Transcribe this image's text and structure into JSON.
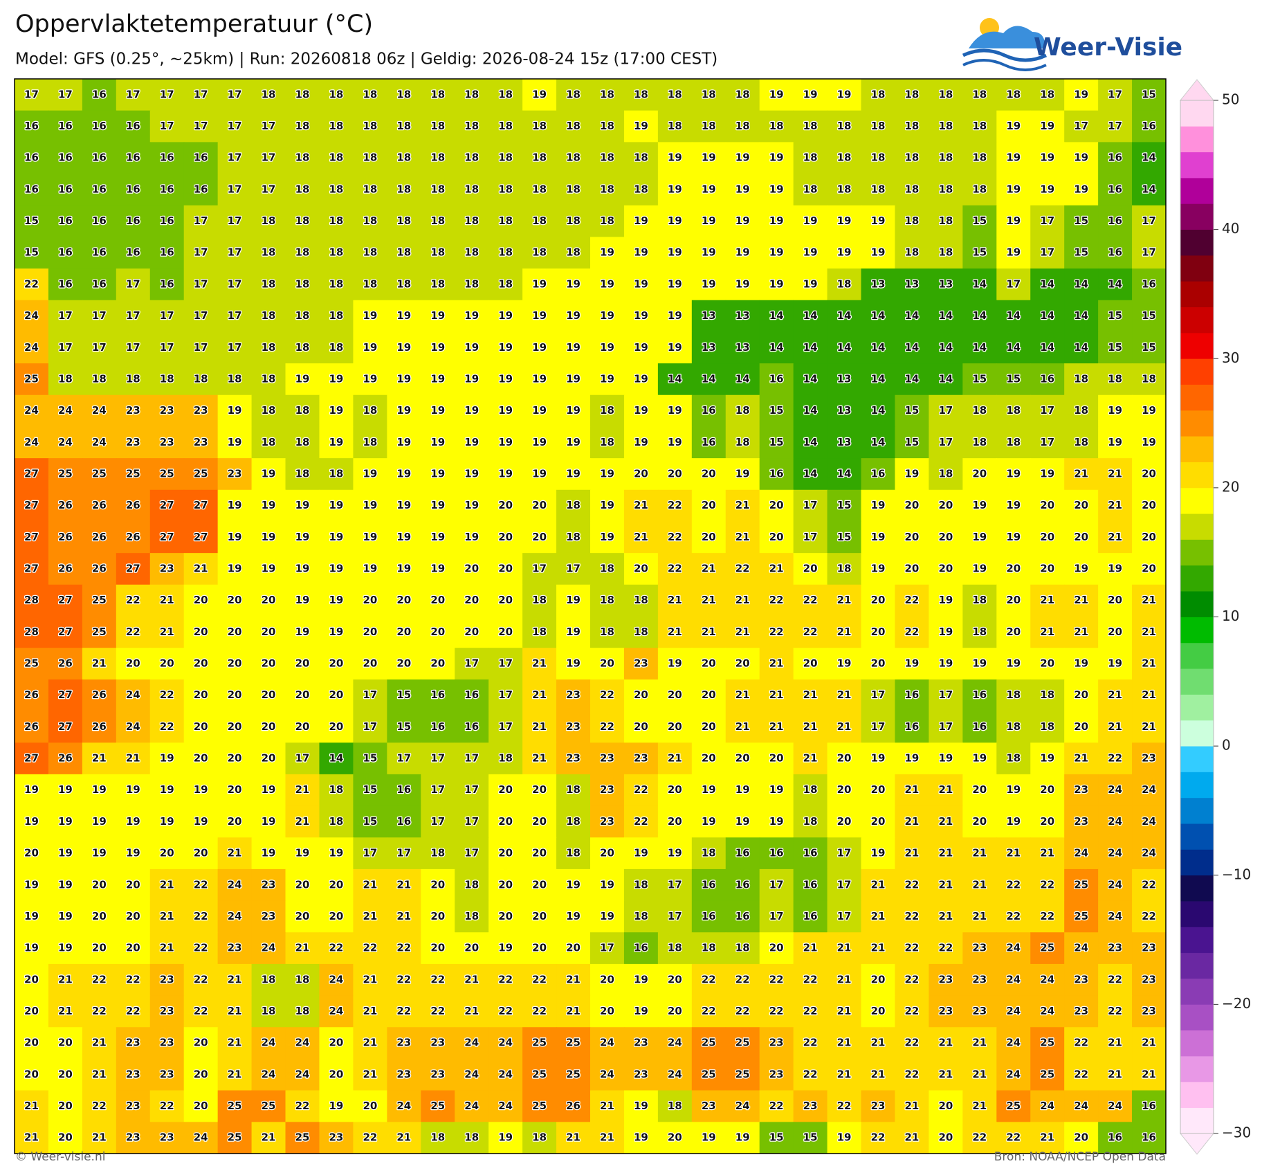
{
  "header": {
    "title": "Oppervlaktetemperatuur (°C)",
    "subtitle": "Model: GFS (0.25°, ~25km)  |  Run: 20260818 06z  |  Geldig: 2026-08-24 15z (17:00 CEST)",
    "logo": "Weer-Visie"
  },
  "map": {
    "grid": [
      [
        17,
        17,
        16,
        17,
        17,
        17,
        17,
        18,
        18,
        18,
        18,
        18,
        18,
        18,
        18,
        19,
        18,
        18,
        18,
        18,
        18,
        18,
        19,
        19,
        19,
        18,
        18,
        18,
        18,
        18,
        18,
        19,
        17,
        15
      ],
      [
        16,
        16,
        16,
        16,
        17,
        17,
        17,
        17,
        18,
        18,
        18,
        18,
        18,
        18,
        18,
        18,
        18,
        18,
        19,
        18,
        18,
        18,
        18,
        18,
        18,
        18,
        18,
        18,
        18,
        19,
        19,
        17,
        17,
        16
      ],
      [
        16,
        16,
        16,
        16,
        16,
        16,
        17,
        17,
        18,
        18,
        18,
        18,
        18,
        18,
        18,
        18,
        18,
        18,
        18,
        19,
        19,
        19,
        19,
        18,
        18,
        18,
        18,
        18,
        18,
        19,
        19,
        19,
        16,
        14
      ],
      [
        16,
        16,
        16,
        16,
        16,
        16,
        17,
        17,
        18,
        18,
        18,
        18,
        18,
        18,
        18,
        18,
        18,
        18,
        18,
        19,
        19,
        19,
        19,
        18,
        18,
        18,
        18,
        18,
        18,
        19,
        19,
        19,
        16,
        14
      ],
      [
        15,
        16,
        16,
        16,
        16,
        17,
        17,
        18,
        18,
        18,
        18,
        18,
        18,
        18,
        18,
        18,
        18,
        18,
        19,
        19,
        19,
        19,
        19,
        19,
        19,
        19,
        18,
        18,
        15,
        19,
        17,
        15,
        16,
        17
      ],
      [
        15,
        16,
        16,
        16,
        16,
        17,
        17,
        18,
        18,
        18,
        18,
        18,
        18,
        18,
        18,
        18,
        18,
        19,
        19,
        19,
        19,
        19,
        19,
        19,
        19,
        19,
        18,
        18,
        15,
        19,
        17,
        15,
        16,
        17
      ],
      [
        22,
        16,
        16,
        17,
        16,
        17,
        17,
        18,
        18,
        18,
        18,
        18,
        18,
        18,
        18,
        19,
        19,
        19,
        19,
        19,
        19,
        19,
        19,
        19,
        18,
        13,
        13,
        13,
        14,
        17,
        14,
        14,
        14,
        16
      ],
      [
        24,
        17,
        17,
        17,
        17,
        17,
        17,
        18,
        18,
        18,
        19,
        19,
        19,
        19,
        19,
        19,
        19,
        19,
        19,
        19,
        13,
        13,
        14,
        14,
        14,
        14,
        14,
        14,
        14,
        14,
        14,
        14,
        15,
        15
      ],
      [
        24,
        17,
        17,
        17,
        17,
        17,
        17,
        18,
        18,
        18,
        19,
        19,
        19,
        19,
        19,
        19,
        19,
        19,
        19,
        19,
        13,
        13,
        14,
        14,
        14,
        14,
        14,
        14,
        14,
        14,
        14,
        14,
        15,
        15
      ],
      [
        25,
        18,
        18,
        18,
        18,
        18,
        18,
        18,
        19,
        19,
        19,
        19,
        19,
        19,
        19,
        19,
        19,
        19,
        19,
        14,
        14,
        14,
        16,
        14,
        13,
        14,
        14,
        14,
        15,
        15,
        16,
        18,
        18,
        18
      ],
      [
        24,
        24,
        24,
        23,
        23,
        23,
        19,
        18,
        18,
        19,
        18,
        19,
        19,
        19,
        19,
        19,
        19,
        18,
        19,
        19,
        16,
        18,
        15,
        14,
        13,
        14,
        15,
        17,
        18,
        18,
        17,
        18,
        19,
        19
      ],
      [
        24,
        24,
        24,
        23,
        23,
        23,
        19,
        18,
        18,
        19,
        18,
        19,
        19,
        19,
        19,
        19,
        19,
        18,
        19,
        19,
        16,
        18,
        15,
        14,
        13,
        14,
        15,
        17,
        18,
        18,
        17,
        18,
        19,
        19
      ],
      [
        27,
        25,
        25,
        25,
        25,
        25,
        23,
        19,
        18,
        18,
        19,
        19,
        19,
        19,
        19,
        19,
        19,
        19,
        20,
        20,
        20,
        19,
        16,
        14,
        14,
        16,
        19,
        18,
        20,
        19,
        19,
        21,
        21,
        20
      ],
      [
        27,
        26,
        26,
        26,
        27,
        27,
        19,
        19,
        19,
        19,
        19,
        19,
        19,
        19,
        20,
        20,
        18,
        19,
        21,
        22,
        20,
        21,
        20,
        17,
        15,
        19,
        20,
        20,
        19,
        19,
        20,
        20,
        21,
        20
      ],
      [
        27,
        26,
        26,
        26,
        27,
        27,
        19,
        19,
        19,
        19,
        19,
        19,
        19,
        19,
        20,
        20,
        18,
        19,
        21,
        22,
        20,
        21,
        20,
        17,
        15,
        19,
        20,
        20,
        19,
        19,
        20,
        20,
        21,
        20
      ],
      [
        27,
        26,
        26,
        27,
        23,
        21,
        19,
        19,
        19,
        19,
        19,
        19,
        19,
        20,
        20,
        17,
        17,
        18,
        20,
        22,
        21,
        22,
        21,
        20,
        18,
        19,
        20,
        20,
        19,
        20,
        20,
        19,
        19,
        20
      ],
      [
        28,
        27,
        25,
        22,
        21,
        20,
        20,
        20,
        19,
        19,
        20,
        20,
        20,
        20,
        20,
        18,
        19,
        18,
        18,
        21,
        21,
        21,
        22,
        22,
        21,
        20,
        22,
        19,
        18,
        20,
        21,
        21,
        20,
        21
      ],
      [
        28,
        27,
        25,
        22,
        21,
        20,
        20,
        20,
        19,
        19,
        20,
        20,
        20,
        20,
        20,
        18,
        19,
        18,
        18,
        21,
        21,
        21,
        22,
        22,
        21,
        20,
        22,
        19,
        18,
        20,
        21,
        21,
        20,
        21
      ],
      [
        25,
        26,
        21,
        20,
        20,
        20,
        20,
        20,
        20,
        20,
        20,
        20,
        20,
        17,
        17,
        21,
        19,
        20,
        23,
        19,
        20,
        20,
        21,
        20,
        19,
        20,
        19,
        19,
        19,
        19,
        20,
        19,
        19,
        21
      ],
      [
        26,
        27,
        26,
        24,
        22,
        20,
        20,
        20,
        20,
        20,
        17,
        15,
        16,
        16,
        17,
        21,
        23,
        22,
        20,
        20,
        20,
        21,
        21,
        21,
        21,
        17,
        16,
        17,
        16,
        18,
        18,
        20,
        21,
        21
      ],
      [
        26,
        27,
        26,
        24,
        22,
        20,
        20,
        20,
        20,
        20,
        17,
        15,
        16,
        16,
        17,
        21,
        23,
        22,
        20,
        20,
        20,
        21,
        21,
        21,
        21,
        17,
        16,
        17,
        16,
        18,
        18,
        20,
        21,
        21
      ],
      [
        27,
        26,
        21,
        21,
        19,
        20,
        20,
        20,
        17,
        14,
        15,
        17,
        17,
        17,
        18,
        21,
        23,
        23,
        23,
        21,
        20,
        20,
        20,
        21,
        20,
        19,
        19,
        19,
        19,
        18,
        19,
        21,
        22,
        23
      ],
      [
        19,
        19,
        19,
        19,
        19,
        19,
        20,
        19,
        21,
        18,
        15,
        16,
        17,
        17,
        20,
        20,
        18,
        23,
        22,
        20,
        19,
        19,
        19,
        18,
        20,
        20,
        21,
        21,
        20,
        19,
        20,
        23,
        24,
        24
      ],
      [
        19,
        19,
        19,
        19,
        19,
        19,
        20,
        19,
        21,
        18,
        15,
        16,
        17,
        17,
        20,
        20,
        18,
        23,
        22,
        20,
        19,
        19,
        19,
        18,
        20,
        20,
        21,
        21,
        20,
        19,
        20,
        23,
        24,
        24
      ],
      [
        20,
        19,
        19,
        19,
        20,
        20,
        21,
        19,
        19,
        19,
        17,
        17,
        18,
        17,
        20,
        20,
        18,
        20,
        19,
        19,
        18,
        16,
        16,
        16,
        17,
        19,
        21,
        21,
        21,
        21,
        21,
        24,
        24,
        24
      ],
      [
        19,
        19,
        20,
        20,
        21,
        22,
        24,
        23,
        20,
        20,
        21,
        21,
        20,
        18,
        20,
        20,
        19,
        19,
        18,
        17,
        16,
        16,
        17,
        16,
        17,
        21,
        22,
        21,
        21,
        22,
        22,
        25,
        24,
        22
      ],
      [
        19,
        19,
        20,
        20,
        21,
        22,
        24,
        23,
        20,
        20,
        21,
        21,
        20,
        18,
        20,
        20,
        19,
        19,
        18,
        17,
        16,
        16,
        17,
        16,
        17,
        21,
        22,
        21,
        21,
        22,
        22,
        25,
        24,
        22
      ],
      [
        19,
        19,
        20,
        20,
        21,
        22,
        23,
        24,
        21,
        22,
        22,
        22,
        20,
        20,
        19,
        20,
        20,
        17,
        16,
        18,
        18,
        18,
        20,
        21,
        21,
        21,
        22,
        22,
        23,
        24,
        25,
        24,
        23,
        23
      ],
      [
        20,
        21,
        22,
        22,
        23,
        22,
        21,
        18,
        18,
        24,
        21,
        22,
        22,
        21,
        22,
        22,
        21,
        20,
        19,
        20,
        22,
        22,
        22,
        22,
        21,
        20,
        22,
        23,
        23,
        24,
        24,
        23,
        22,
        23
      ],
      [
        20,
        21,
        22,
        22,
        23,
        22,
        21,
        18,
        18,
        24,
        21,
        22,
        22,
        21,
        22,
        22,
        21,
        20,
        19,
        20,
        22,
        22,
        22,
        22,
        21,
        20,
        22,
        23,
        23,
        24,
        24,
        23,
        22,
        23
      ],
      [
        20,
        20,
        21,
        23,
        23,
        20,
        21,
        24,
        24,
        20,
        21,
        23,
        23,
        24,
        24,
        25,
        25,
        24,
        23,
        24,
        25,
        25,
        23,
        22,
        21,
        21,
        22,
        21,
        21,
        24,
        25,
        22,
        21,
        21
      ],
      [
        20,
        20,
        21,
        23,
        23,
        20,
        21,
        24,
        24,
        20,
        21,
        23,
        23,
        24,
        24,
        25,
        25,
        24,
        23,
        24,
        25,
        25,
        23,
        22,
        21,
        21,
        22,
        21,
        21,
        24,
        25,
        22,
        21,
        21
      ],
      [
        21,
        20,
        22,
        23,
        22,
        20,
        25,
        25,
        22,
        19,
        20,
        24,
        25,
        24,
        24,
        25,
        26,
        21,
        19,
        18,
        23,
        24,
        22,
        23,
        22,
        23,
        21,
        20,
        21,
        25,
        24,
        24,
        24,
        16
      ],
      [
        21,
        20,
        21,
        23,
        23,
        24,
        25,
        21,
        25,
        23,
        22,
        21,
        18,
        18,
        19,
        18,
        21,
        21,
        19,
        20,
        19,
        19,
        15,
        15,
        19,
        22,
        21,
        20,
        22,
        22,
        21,
        20,
        16,
        16
      ]
    ],
    "colorbar": {
      "lim": [
        -30,
        50
      ],
      "ticks": [
        50,
        40,
        30,
        20,
        10,
        0,
        {
          "value": -10,
          "label": "−10"
        },
        {
          "value": -20,
          "label": "−20"
        },
        {
          "value": -30,
          "label": "−30"
        }
      ],
      "colors": [
        "#ffe8fa",
        "#ffc0f0",
        "#e898e6",
        "#cc70d6",
        "#a850c4",
        "#8a3cb4",
        "#6a28a2",
        "#4a1490",
        "#2a0870",
        "#100a50",
        "#002d8c",
        "#0050b0",
        "#0080d0",
        "#00aaee",
        "#33ccff",
        "#ccffdd",
        "#a0f0a0",
        "#70dd70",
        "#44cc44",
        "#00bb00",
        "#008c00",
        "#33a800",
        "#77c000",
        "#c8dc00",
        "#ffff00",
        "#ffdd00",
        "#ffbb00",
        "#ff8c00",
        "#ff6600",
        "#ff4000",
        "#ee0000",
        "#cc0000",
        "#aa0000",
        "#800010",
        "#500030",
        "#880060",
        "#b0009a",
        "#e040d0",
        "#ff90dc",
        "#ffd8f0"
      ]
    }
  },
  "footer": {
    "copyright": "© Weer-visie.nl",
    "source": "Bron: NOAA/NCEP Open Data"
  }
}
